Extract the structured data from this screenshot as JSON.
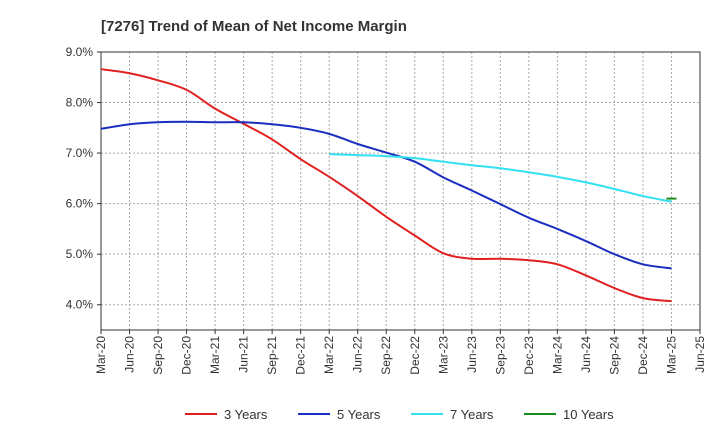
{
  "chart_data": {
    "type": "line",
    "title": "[7276]  Trend of Mean of Net Income Margin",
    "xlabel": "",
    "ylabel": "",
    "ylim": [
      3.5,
      9.0
    ],
    "grid": true,
    "legend_position": "bottom",
    "x_categories": [
      "Mar-20",
      "Jun-20",
      "Sep-20",
      "Dec-20",
      "Mar-21",
      "Jun-21",
      "Sep-21",
      "Dec-21",
      "Mar-22",
      "Jun-22",
      "Sep-22",
      "Dec-22",
      "Mar-23",
      "Jun-23",
      "Sep-23",
      "Dec-23",
      "Mar-24",
      "Jun-24",
      "Sep-24",
      "Dec-24",
      "Mar-25",
      "Jun-25"
    ],
    "y_ticks": [
      {
        "value": 9.0,
        "label": "9.0%"
      },
      {
        "value": 8.0,
        "label": "8.0%"
      },
      {
        "value": 7.0,
        "label": "7.0%"
      },
      {
        "value": 6.0,
        "label": "6.0%"
      },
      {
        "value": 5.0,
        "label": "5.0%"
      },
      {
        "value": 4.0,
        "label": "4.0%"
      }
    ],
    "series": [
      {
        "name": "3 Years",
        "color": "#e02020",
        "values": [
          8.66,
          8.58,
          8.44,
          8.25,
          7.88,
          7.58,
          7.27,
          6.88,
          6.53,
          6.15,
          5.74,
          5.37,
          5.02,
          4.91,
          4.91,
          4.88,
          4.8,
          4.58,
          4.33,
          4.13,
          4.07,
          null
        ]
      },
      {
        "name": "5 Years",
        "color": "#1a2ebf",
        "values": [
          7.48,
          7.57,
          7.61,
          7.62,
          7.61,
          7.61,
          7.57,
          7.5,
          7.38,
          7.18,
          7.01,
          6.83,
          6.52,
          6.26,
          5.99,
          5.72,
          5.5,
          5.26,
          5.0,
          4.8,
          4.72,
          null
        ]
      },
      {
        "name": "7 Years",
        "color": "#33e0f0",
        "values": [
          null,
          null,
          null,
          null,
          null,
          null,
          null,
          null,
          6.98,
          6.96,
          6.94,
          6.9,
          6.83,
          6.76,
          6.7,
          6.62,
          6.53,
          6.42,
          6.29,
          6.15,
          6.04,
          null
        ]
      },
      {
        "name": "10 Years",
        "color": "#1a8a1a",
        "values": [
          null,
          null,
          null,
          null,
          null,
          null,
          null,
          null,
          null,
          null,
          null,
          null,
          null,
          null,
          null,
          null,
          null,
          null,
          null,
          null,
          6.1,
          null
        ]
      }
    ]
  }
}
